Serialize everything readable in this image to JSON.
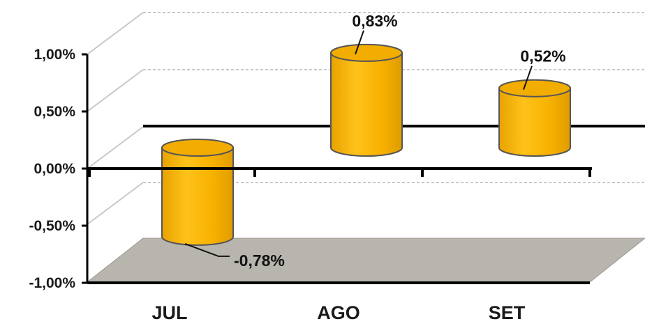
{
  "chart_data": {
    "type": "bar",
    "style": "3d-cylinder",
    "categories": [
      "JUL",
      "AGO",
      "SET"
    ],
    "values": [
      -0.78,
      0.83,
      0.52
    ],
    "value_labels": [
      "-0,78%",
      "0,83%",
      "0,52%"
    ],
    "y_ticks": [
      1.0,
      0.5,
      0.0,
      -0.5,
      -1.0
    ],
    "y_tick_labels": [
      "1,00%",
      "0,50%",
      "0,00%",
      "-0,50%",
      "-1,00%"
    ],
    "ylim": [
      -1.0,
      1.0
    ],
    "grid": true,
    "colors": {
      "bar_body": "#f5b400",
      "bar_top": "#f2ad00",
      "bar_outline": "#555555",
      "floor": "#b8b5ae",
      "gridline": "#c8c8c8",
      "axis": "#000000"
    }
  }
}
